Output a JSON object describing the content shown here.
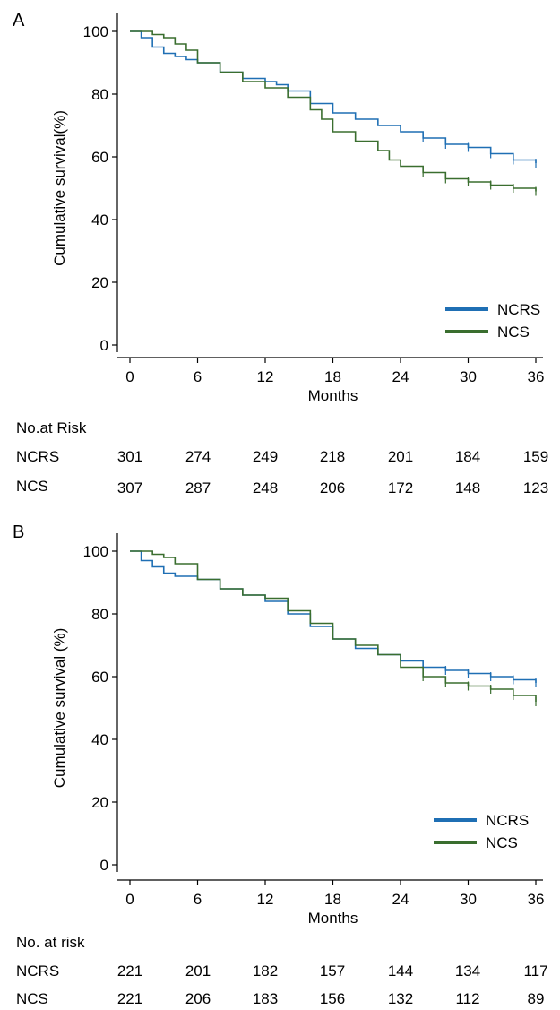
{
  "colors": {
    "ncrs": "#1f6fb4",
    "ncs": "#3a6e2f"
  },
  "chart_data": [
    {
      "panel": "A",
      "type": "line",
      "xlabel": "Months",
      "ylabel": "Cumulative survival(%)",
      "xlim": [
        0,
        36
      ],
      "ylim": [
        0,
        100
      ],
      "xticks": [
        0,
        6,
        12,
        18,
        24,
        30,
        36
      ],
      "yticks": [
        0,
        20,
        40,
        60,
        80,
        100
      ],
      "legend": "bottom-right",
      "series": [
        {
          "name": "NCRS",
          "x": [
            0,
            1,
            2,
            3,
            4,
            5,
            6,
            8,
            10,
            12,
            13,
            14,
            16,
            18,
            20,
            22,
            24,
            26,
            28,
            30,
            32,
            34,
            36
          ],
          "y": [
            100,
            98,
            95,
            93,
            92,
            91,
            90,
            87,
            85,
            84,
            83,
            81,
            77,
            74,
            72,
            70,
            68,
            66,
            64,
            63,
            61,
            59,
            58
          ]
        },
        {
          "name": "NCS",
          "x": [
            0,
            2,
            3,
            4,
            5,
            6,
            8,
            10,
            12,
            14,
            16,
            17,
            18,
            20,
            22,
            23,
            24,
            26,
            28,
            30,
            32,
            34,
            36
          ],
          "y": [
            100,
            99,
            98,
            96,
            94,
            90,
            87,
            84,
            82,
            79,
            75,
            72,
            68,
            65,
            62,
            59,
            57,
            55,
            53,
            52,
            51,
            50,
            49
          ]
        }
      ],
      "risk_table": {
        "title": "No.at Risk",
        "rows": [
          {
            "label": "NCRS",
            "values": [
              "301",
              "274",
              "249",
              "218",
              "201",
              "184",
              "159"
            ]
          },
          {
            "label": "NCS",
            "values": [
              "307",
              "287",
              "248",
              "206",
              "172",
              "148",
              "123"
            ]
          }
        ]
      }
    },
    {
      "panel": "B",
      "type": "line",
      "xlabel": "Months",
      "ylabel": "Cumulative survival (%)",
      "xlim": [
        0,
        36
      ],
      "ylim": [
        0,
        100
      ],
      "xticks": [
        0,
        6,
        12,
        18,
        24,
        30,
        36
      ],
      "yticks": [
        0,
        20,
        40,
        60,
        80,
        100
      ],
      "legend": "bottom-right",
      "series": [
        {
          "name": "NCRS",
          "x": [
            0,
            1,
            2,
            3,
            4,
            6,
            8,
            10,
            12,
            14,
            16,
            18,
            20,
            22,
            24,
            26,
            28,
            30,
            32,
            34,
            36
          ],
          "y": [
            100,
            97,
            95,
            93,
            92,
            91,
            88,
            86,
            84,
            80,
            76,
            72,
            69,
            67,
            65,
            63,
            62,
            61,
            60,
            59,
            58
          ]
        },
        {
          "name": "NCS",
          "x": [
            0,
            2,
            3,
            4,
            6,
            8,
            10,
            12,
            14,
            16,
            18,
            20,
            22,
            24,
            26,
            28,
            30,
            32,
            34,
            36
          ],
          "y": [
            100,
            99,
            98,
            96,
            91,
            88,
            86,
            85,
            81,
            77,
            72,
            70,
            67,
            63,
            60,
            58,
            57,
            56,
            54,
            52
          ]
        }
      ],
      "risk_table": {
        "title": "No. at risk",
        "rows": [
          {
            "label": "NCRS",
            "values": [
              "221",
              "201",
              "182",
              "157",
              "144",
              "134",
              "117"
            ]
          },
          {
            "label": "NCS",
            "values": [
              "221",
              "206",
              "183",
              "156",
              "132",
              "112",
              "89"
            ]
          }
        ]
      }
    }
  ]
}
